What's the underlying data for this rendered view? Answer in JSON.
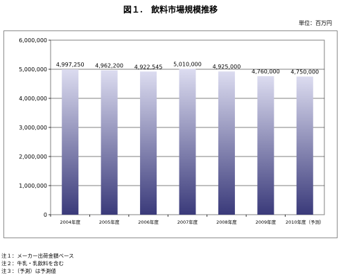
{
  "header": {
    "title": "図１.　飲料市場規模推移",
    "unit": "単位：百万円"
  },
  "chart_data": {
    "type": "bar",
    "title": "図１.　飲料市場規模推移",
    "unit": "単位：百万円",
    "categories": [
      "2004年度",
      "2005年度",
      "2006年度",
      "2007年度",
      "2008年度",
      "2009年度",
      "2010年度（予測）"
    ],
    "values": [
      4997250,
      4962200,
      4922545,
      5010000,
      4925000,
      4760000,
      4750000
    ],
    "value_labels": [
      "4,997,250",
      "4,962,200",
      "4,922,545",
      "5,010,000",
      "4,925,000",
      "4,760,000",
      "4,750,000"
    ],
    "y_ticks": [
      0,
      1000000,
      2000000,
      3000000,
      4000000,
      5000000,
      6000000
    ],
    "y_tick_labels": [
      "0",
      "1,000,000",
      "2,000,000",
      "3,000,000",
      "4,000,000",
      "5,000,000",
      "6,000,000"
    ],
    "ylim": [
      0,
      6000000
    ],
    "grid": true,
    "bar_color_top": "#dcdcf0",
    "bar_color_bottom": "#3a3a7a"
  },
  "notes": [
    "注１：メーカー出荷金額ベース",
    "注２：牛乳・乳飲料を含む",
    "注３：（予測）は予測値"
  ]
}
